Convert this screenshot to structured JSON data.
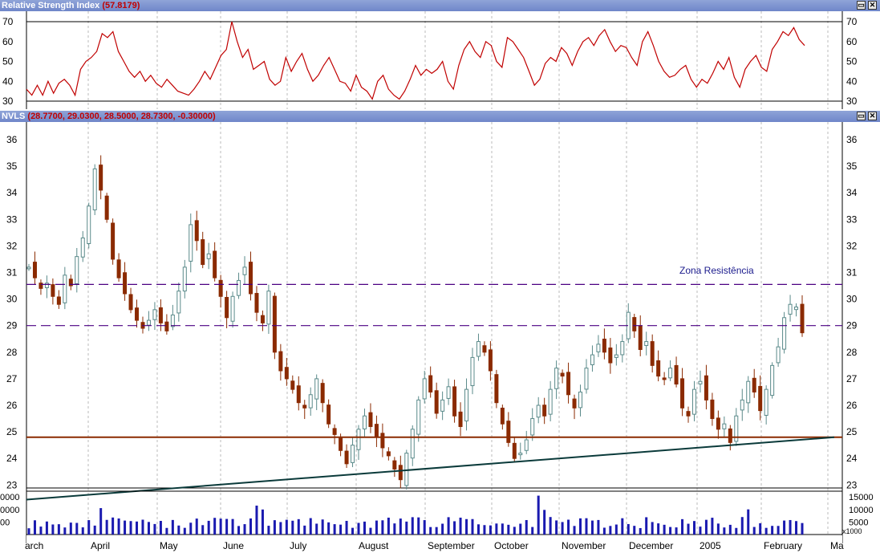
{
  "rsi_panel": {
    "title_name": "Relative Strength Index",
    "title_value": "(57.8179)",
    "ticks": [
      "70",
      "60",
      "50",
      "40",
      "30"
    ]
  },
  "price_panel": {
    "title_name": "NVLS",
    "title_value": "(28.7700, 29.0300, 28.5000, 28.7300, -0.30000)",
    "ticks": [
      "36",
      "35",
      "34",
      "33",
      "32",
      "31",
      "30",
      "29",
      "28",
      "27",
      "26",
      "25",
      "24",
      "23"
    ],
    "annotation": "Zona Resistência"
  },
  "volume_panel": {
    "left_ticks": [
      "0000",
      "0000",
      "00"
    ],
    "right_ticks": [
      "15000",
      "10000",
      "5000"
    ],
    "unit": "x1000"
  },
  "months": [
    "arch",
    "April",
    "May",
    "June",
    "July",
    "August",
    "September",
    "October",
    "November",
    "December",
    "2005",
    "February",
    "Ma"
  ],
  "colors": {
    "rsi_line": "#c00000",
    "up_candle": "#5a8a8a",
    "down_candle": "#8b2a00",
    "volume": "#1a1ab0",
    "support_line": "#0a3a3a",
    "horizontal_line": "#8b2a00",
    "resistance_dash": "#4b0082"
  },
  "chart_data": {
    "type": "candlestick",
    "symbol": "NVLS",
    "ohlc_last": {
      "open": 28.77,
      "high": 29.03,
      "low": 28.5,
      "close": 28.73,
      "change": -0.3
    },
    "rsi": {
      "last": 57.8179,
      "ylim": [
        30,
        70
      ],
      "reference_lines": [
        30,
        70
      ],
      "values": [
        36,
        33,
        38,
        33,
        40,
        34,
        39,
        41,
        38,
        33,
        46,
        50,
        52,
        55,
        64,
        62,
        65,
        55,
        50,
        45,
        42,
        45,
        40,
        43,
        39,
        37,
        41,
        38,
        35,
        34,
        33,
        36,
        40,
        45,
        41,
        47,
        53,
        56,
        70,
        60,
        52,
        56,
        46,
        48,
        50,
        41,
        38,
        40,
        52,
        45,
        50,
        54,
        46,
        40,
        43,
        48,
        52,
        46,
        40,
        39,
        35,
        43,
        37,
        35,
        31,
        40,
        43,
        36,
        33,
        31,
        35,
        41,
        48,
        43,
        46,
        44,
        46,
        50,
        40,
        36,
        48,
        56,
        60,
        55,
        52,
        60,
        58,
        50,
        47,
        62,
        60,
        56,
        52,
        45,
        38,
        41,
        49,
        52,
        50,
        57,
        54,
        48,
        55,
        60,
        62,
        58,
        63,
        66,
        60,
        55,
        58,
        57,
        52,
        48,
        60,
        65,
        58,
        50,
        45,
        42,
        43,
        46,
        48,
        41,
        37,
        41,
        39,
        44,
        50,
        46,
        52,
        42,
        37,
        46,
        50,
        53,
        47,
        45,
        56,
        60,
        65,
        63,
        67,
        61,
        58
      ]
    },
    "price": {
      "ylim": [
        22.5,
        36.5
      ],
      "x_categories": [
        "March",
        "April",
        "May",
        "June",
        "July",
        "August",
        "September",
        "October",
        "November",
        "December",
        "2005",
        "February",
        "March"
      ],
      "closes": [
        31.2,
        30.8,
        30.4,
        30.6,
        30.1,
        29.8,
        30.9,
        30.5,
        31.6,
        32.3,
        33.5,
        34.9,
        34.1,
        33.0,
        31.5,
        30.8,
        30.2,
        29.6,
        29.2,
        28.9,
        29.2,
        29.6,
        29.1,
        28.8,
        29.4,
        30.3,
        31.2,
        32.8,
        32.2,
        31.3,
        31.7,
        30.8,
        30.1,
        29.3,
        30.1,
        30.7,
        31.2,
        30.2,
        29.5,
        29.1,
        30.3,
        28.0,
        27.3,
        27.0,
        26.6,
        26.1,
        25.9,
        26.4,
        27.0,
        26.1,
        25.3,
        24.9,
        24.3,
        23.8,
        24.5,
        25.1,
        25.6,
        25.2,
        24.8,
        24.4,
        24.1,
        23.6,
        23.2,
        24.2,
        25.1,
        26.2,
        27.0,
        26.5,
        25.7,
        26.2,
        26.7,
        25.6,
        25.2,
        26.6,
        27.8,
        28.4,
        28.0,
        27.3,
        26.1,
        25.3,
        24.6,
        24.0,
        24.2,
        24.7,
        25.5,
        26.0,
        25.6,
        26.6,
        27.4,
        27.1,
        26.4,
        25.9,
        26.5,
        27.4,
        27.9,
        28.3,
        28.0,
        27.6,
        27.9,
        28.4,
        29.5,
        28.8,
        28.1,
        28.4,
        27.5,
        27.1,
        27.0,
        27.4,
        26.8,
        25.9,
        25.6,
        26.6,
        26.9,
        26.2,
        25.5,
        25.1,
        25.3,
        24.6,
        25.6,
        26.2,
        26.9,
        26.5,
        25.8,
        26.6,
        27.5,
        28.2,
        29.3,
        29.8,
        29.7,
        28.73
      ]
    },
    "volume": {
      "unit": "x1000",
      "ylim": [
        0,
        16000
      ]
    },
    "lines": {
      "resistance_upper": 30.55,
      "resistance_lower": 29.0,
      "horizontal_support": 24.8,
      "trendline": {
        "from": {
          "x": "March",
          "y": 22.45
        },
        "to": {
          "x": "February",
          "y": 24.8
        }
      }
    },
    "grid": true
  }
}
